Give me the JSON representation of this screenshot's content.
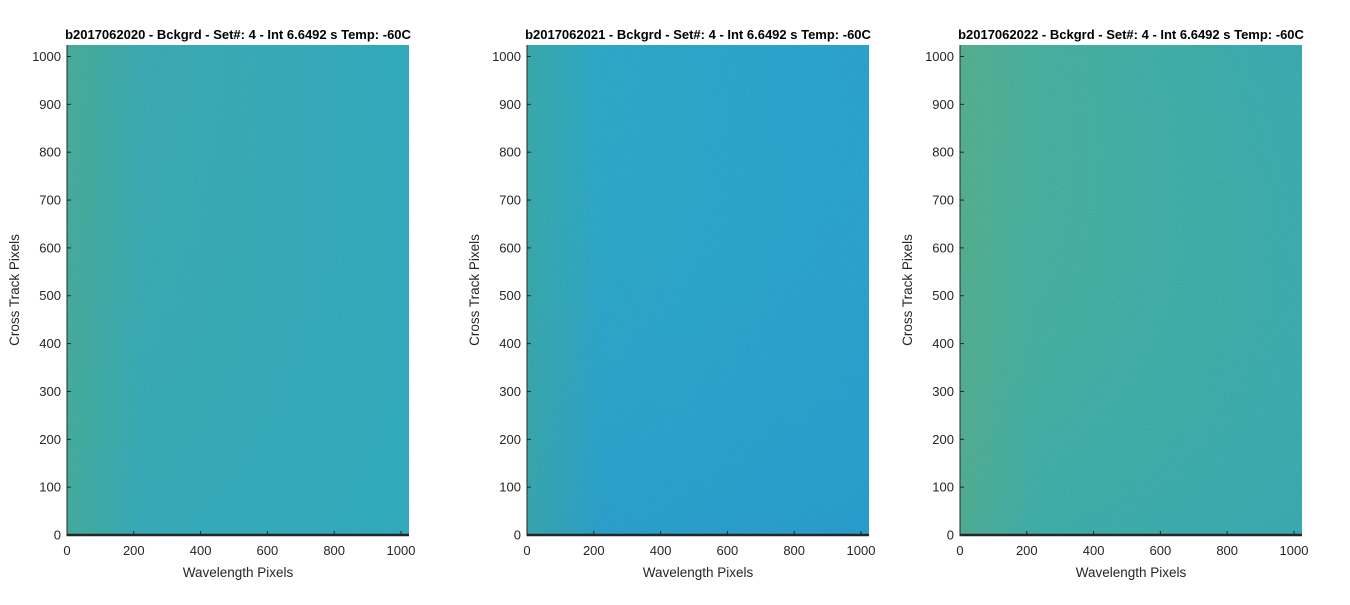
{
  "chart_data": [
    {
      "type": "heatmap",
      "title": "b2017062020 - Bckgrd - Set#: 4 - Int 6.6492 s Temp: -60C",
      "xlabel": "Wavelength Pixels",
      "ylabel": "Cross Track Pixels",
      "xlim": [
        0,
        1024
      ],
      "ylim": [
        0,
        1024
      ],
      "xticks": [
        0,
        200,
        400,
        600,
        800,
        1000
      ],
      "yticks": [
        0,
        100,
        200,
        300,
        400,
        500,
        600,
        700,
        800,
        900,
        1000
      ],
      "colors": {
        "tl": "#27a5a9",
        "tr": "#18a5bd",
        "bl": "#1fa8ad",
        "br": "#16a6bb",
        "left_strip": "#3aa77f"
      },
      "noise_color": "#6fbf6a"
    },
    {
      "type": "heatmap",
      "title": "b2017062021 - Bckgrd - Set#: 4 - Int 6.6492 s Temp: -60C",
      "xlabel": "Wavelength Pixels",
      "ylabel": "Cross Track Pixels",
      "xlim": [
        0,
        1024
      ],
      "ylim": [
        0,
        1024
      ],
      "xticks": [
        0,
        200,
        400,
        600,
        800,
        1000
      ],
      "yticks": [
        0,
        100,
        200,
        300,
        400,
        500,
        600,
        700,
        800,
        900,
        1000
      ],
      "colors": {
        "tl": "#14a4c6",
        "tr": "#0f9bcf",
        "bl": "#12a5c4",
        "br": "#0e90cf",
        "left_strip": "#2aa38a"
      },
      "noise_color": "#46b5c2"
    },
    {
      "type": "heatmap",
      "title": "b2017062022 - Bckgrd - Set#: 4 - Int 6.6492 s Temp: -60C",
      "xlabel": "Wavelength Pixels",
      "ylabel": "Cross Track Pixels",
      "xlim": [
        0,
        1024
      ],
      "ylim": [
        0,
        1024
      ],
      "xticks": [
        0,
        200,
        400,
        600,
        800,
        1000
      ],
      "yticks": [
        0,
        100,
        200,
        300,
        400,
        500,
        600,
        700,
        800,
        900,
        1000
      ],
      "colors": {
        "tl": "#36ad93",
        "tr": "#22a6ad",
        "bl": "#3aaf8e",
        "br": "#20a5ad",
        "left_strip": "#48a878"
      },
      "noise_color": "#86c45f"
    }
  ]
}
